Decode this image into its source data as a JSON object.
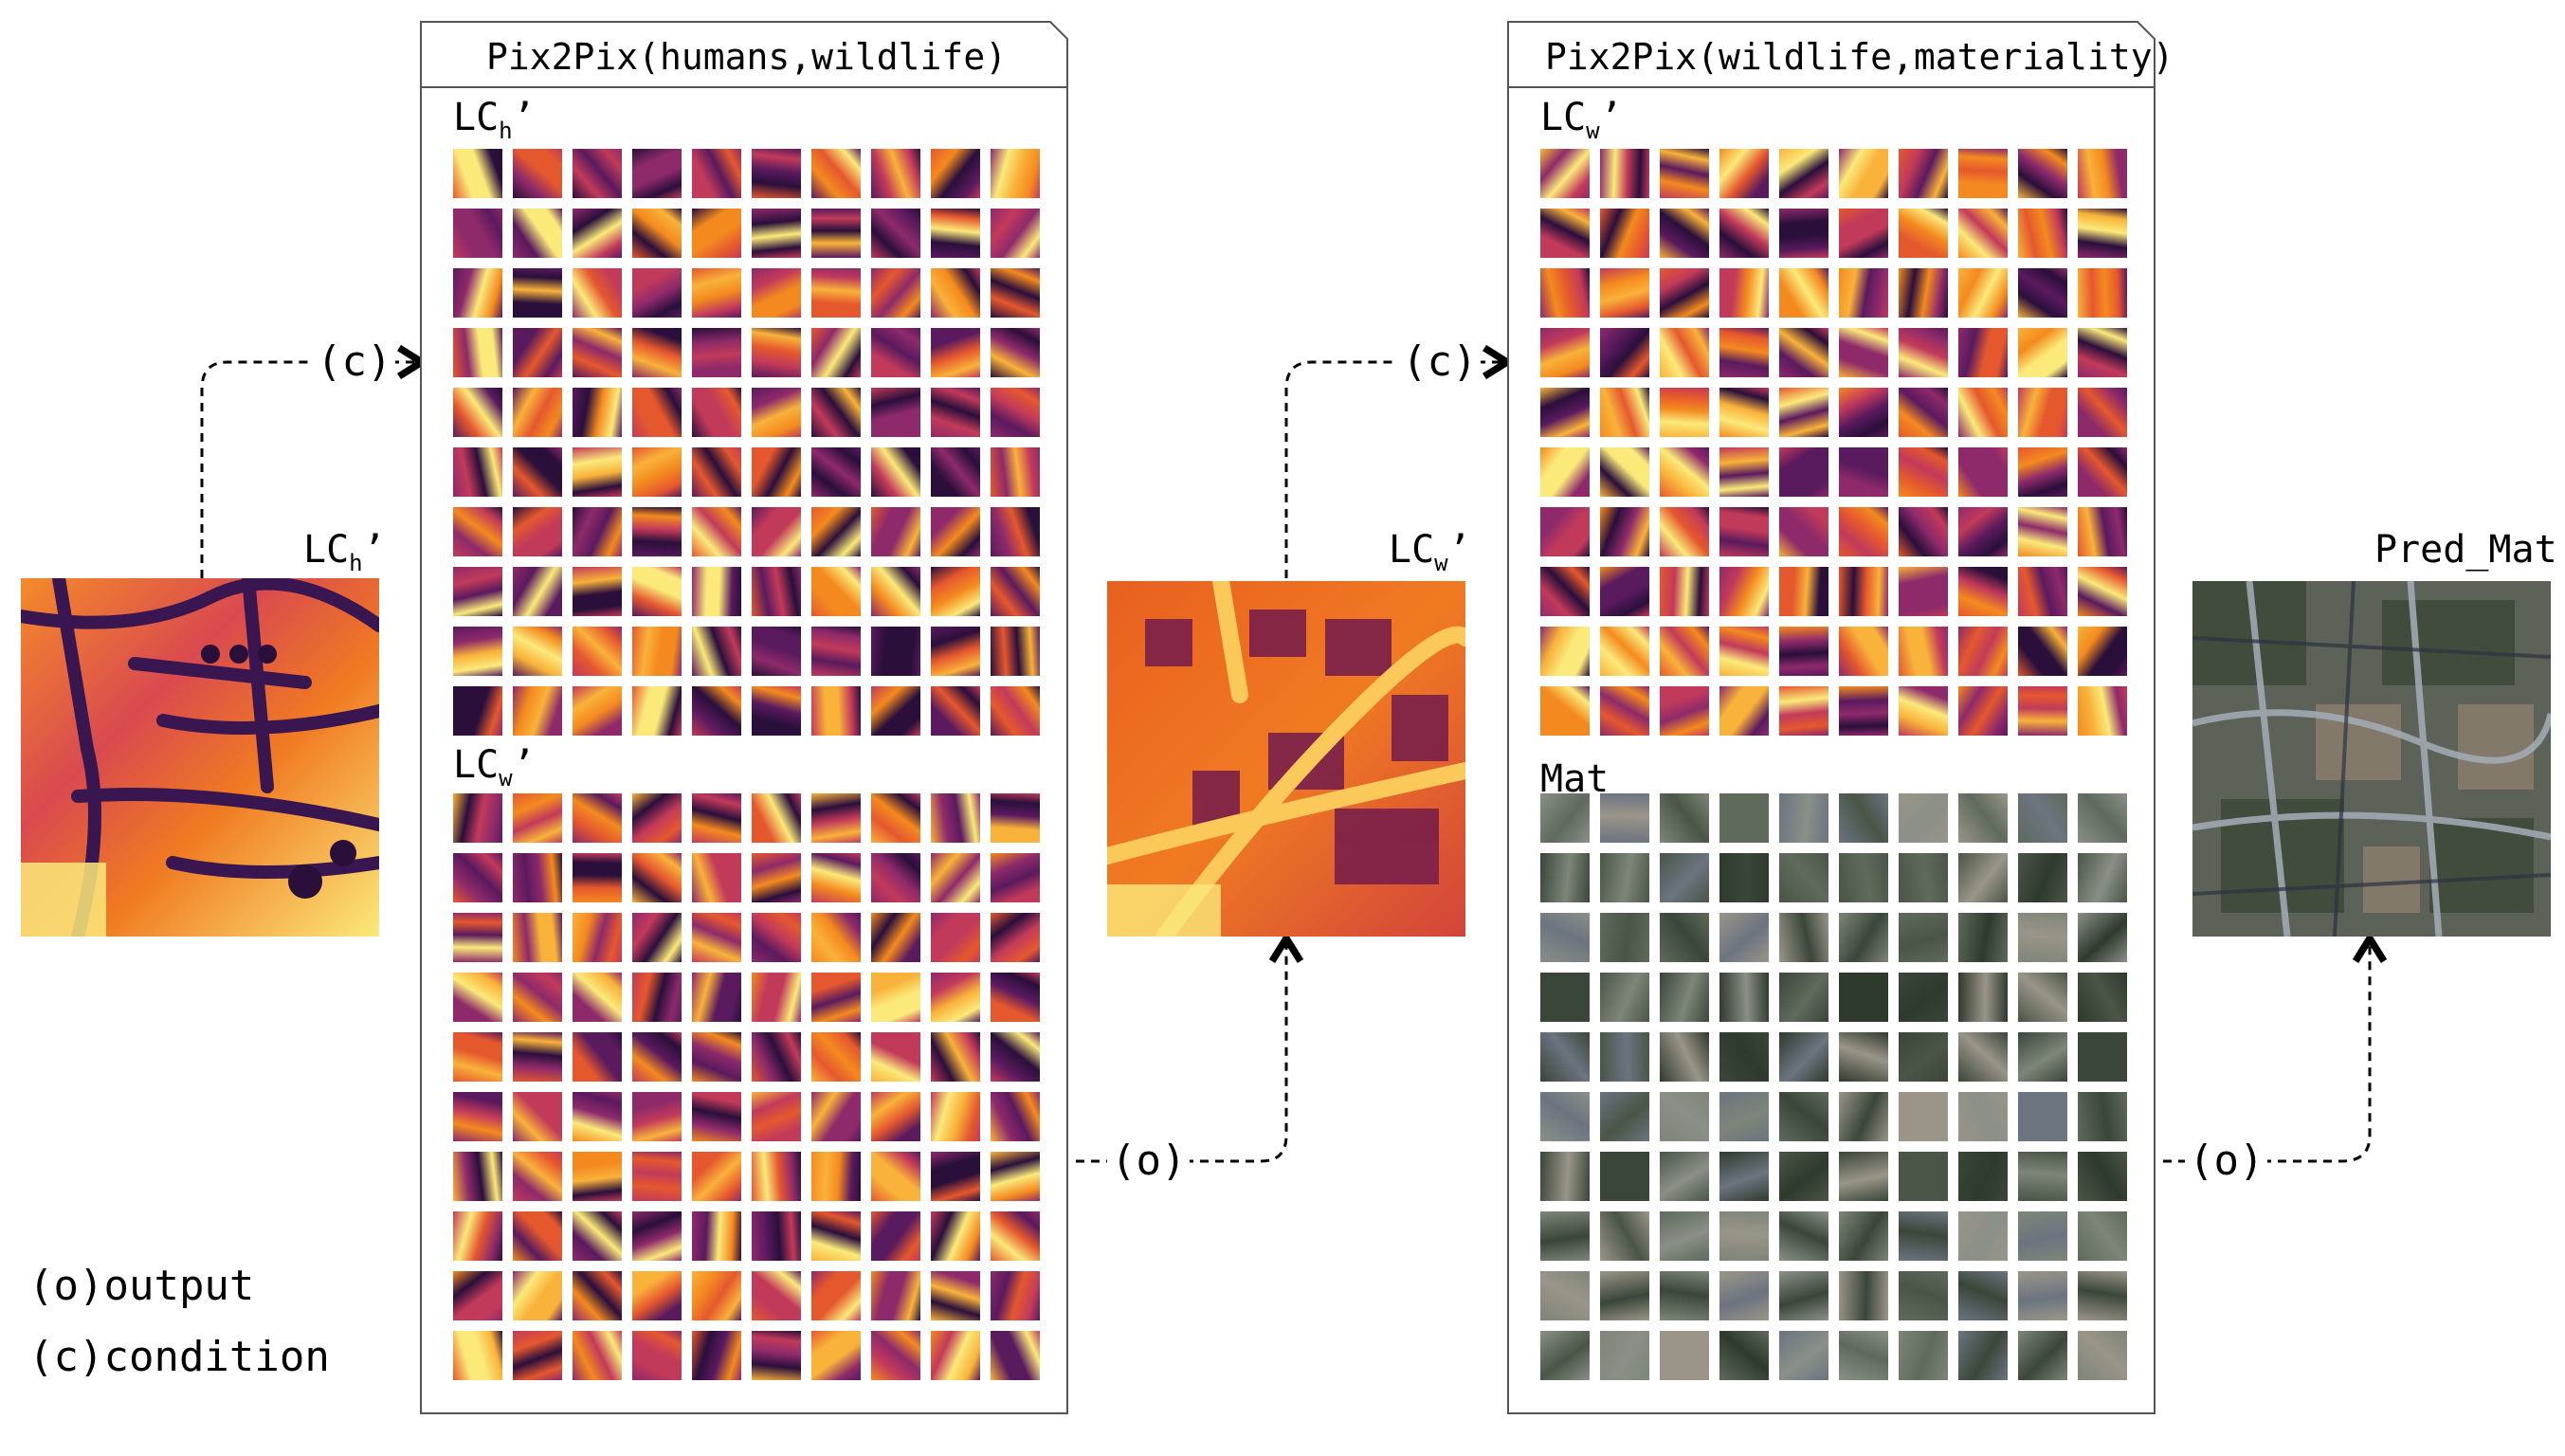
{
  "panels": {
    "left": {
      "title": "Pix2Pix(humans,wildlife)",
      "section1_label": "LC",
      "section1_sub": "h",
      "section2_label": "LC",
      "section2_sub": "w"
    },
    "right": {
      "title": "Pix2Pix(wildlife,materiality)",
      "section1_label": "LC",
      "section1_sub": "w",
      "section2_label": "Mat",
      "section2_sub": ""
    }
  },
  "images": {
    "input": {
      "label": "LC",
      "sub": "h"
    },
    "middle": {
      "label": "LC",
      "sub": "w"
    },
    "output": {
      "label": "Pred_Mat",
      "sub": ""
    }
  },
  "connectors": {
    "condition_tag": "(c)",
    "output_tag": "(o)"
  },
  "legend": {
    "output": "(o)output",
    "condition": "(c)condition"
  },
  "colors": {
    "heat_dark": "#2a0f3b",
    "heat_mid": "#b3306a",
    "heat_orange": "#f07a22",
    "heat_yellow": "#fbe97a",
    "satellite_dark": "#2f3a2e",
    "satellite_light": "#8a8f88",
    "border": "#555555"
  }
}
